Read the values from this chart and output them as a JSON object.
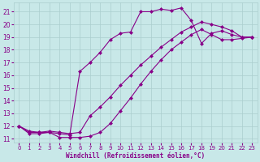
{
  "xlabel": "Windchill (Refroidissement éolien,°C)",
  "background_color": "#c8e8e8",
  "grid_color": "#aacece",
  "line_color": "#880088",
  "xlim": [
    -0.5,
    23.5
  ],
  "ylim": [
    10.7,
    21.7
  ],
  "yticks": [
    11,
    12,
    13,
    14,
    15,
    16,
    17,
    18,
    19,
    20,
    21
  ],
  "xticks": [
    0,
    1,
    2,
    3,
    4,
    5,
    6,
    7,
    8,
    9,
    10,
    11,
    12,
    13,
    14,
    15,
    16,
    17,
    18,
    19,
    20,
    21,
    22,
    23
  ],
  "curve1_x": [
    0,
    1,
    2,
    3,
    4,
    5,
    6,
    7,
    8,
    9,
    10,
    11,
    12,
    13,
    14,
    15,
    16,
    17,
    18,
    19,
    20,
    21,
    22,
    23
  ],
  "curve1_y": [
    12.0,
    11.5,
    11.5,
    11.5,
    11.1,
    11.1,
    11.1,
    11.2,
    11.5,
    12.2,
    13.2,
    14.2,
    15.3,
    16.3,
    17.2,
    18.0,
    18.6,
    19.2,
    19.6,
    19.2,
    18.8,
    18.8,
    18.9,
    19.0
  ],
  "curve2_x": [
    0,
    1,
    2,
    3,
    4,
    5,
    6,
    7,
    8,
    9,
    10,
    11,
    12,
    13,
    14,
    15,
    16,
    17,
    18,
    19,
    20,
    21,
    22,
    23
  ],
  "curve2_y": [
    12.0,
    11.4,
    11.4,
    11.5,
    11.4,
    11.3,
    16.3,
    17.0,
    17.8,
    18.8,
    19.3,
    19.4,
    21.0,
    21.0,
    21.2,
    21.1,
    21.3,
    20.3,
    18.5,
    19.3,
    19.5,
    19.2,
    19.0,
    19.0
  ],
  "curve3_x": [
    0,
    1,
    2,
    3,
    4,
    5,
    6,
    7,
    8,
    9,
    10,
    11,
    12,
    13,
    14,
    15,
    16,
    17,
    18,
    19,
    20,
    21,
    22,
    23
  ],
  "curve3_y": [
    12.0,
    11.6,
    11.5,
    11.6,
    11.5,
    11.4,
    11.5,
    12.8,
    13.5,
    14.3,
    15.2,
    16.0,
    16.8,
    17.5,
    18.2,
    18.8,
    19.4,
    19.8,
    20.2,
    20.0,
    19.8,
    19.5,
    19.0,
    19.0
  ]
}
